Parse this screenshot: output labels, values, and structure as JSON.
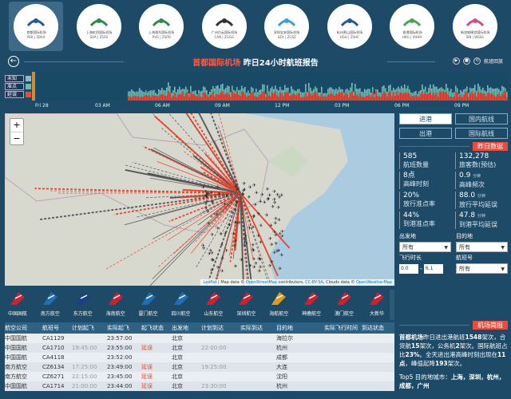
{
  "airports": [
    {
      "name": "首都国际机场",
      "code": "PEK | ZBAA",
      "color": "#1a5aa6"
    },
    {
      "name": "上海虹桥国际机场",
      "code": "SHA | ZSSS",
      "color": "#2a8a4a"
    },
    {
      "name": "上海浦东国际机场",
      "code": "PVG | ZSPD",
      "color": "#2a8a4a"
    },
    {
      "name": "广州白云国际机场",
      "code": "CAN | ZGGG",
      "color": "#333"
    },
    {
      "name": "深圳宝安国际机场",
      "code": "SZX | ZGSZ",
      "color": "#3aa0d8"
    },
    {
      "name": "杭州萧山国际机场",
      "code": "HGH | ZSHC",
      "color": "#1a5aa6"
    },
    {
      "name": "香港国际机场",
      "code": "HKG | VHHH",
      "color": "#4aa84a"
    },
    {
      "name": "新加坡樟宜国际机场",
      "code": "SIN | WSSS",
      "color": "#d94a8a"
    }
  ],
  "airport_logo_text": {
    "canton": "BAIYUNPORT",
    "hia": "HIA"
  },
  "title": {
    "airport": "首都国际机场",
    "rest": "昨日24小时航班报告"
  },
  "controls": {
    "play": "▶",
    "stop": "■",
    "full": "航班回放"
  },
  "legend": [
    {
      "label": "未知",
      "color": "#8fb7d6"
    },
    {
      "label": "准点",
      "color": "#5fc2b0"
    },
    {
      "label": "延误",
      "color": "#e94b3c"
    }
  ],
  "timeline_ticks": [
    "Fri 28",
    "03 AM",
    "06 AM",
    "09 AM",
    "12 PM",
    "03 PM",
    "06 PM",
    "09 PM"
  ],
  "map": {
    "zoom_in": "+",
    "zoom_out": "−",
    "attribution": [
      {
        "text": "Leaflet",
        "link": true
      },
      {
        "text": " | Map data © ",
        "link": false
      },
      {
        "text": "OpenStreetMap",
        "link": true
      },
      {
        "text": " contributors, ",
        "link": false
      },
      {
        "text": "CC-BY-SA",
        "link": true
      },
      {
        "text": ", Clouds data © ",
        "link": false
      },
      {
        "text": "OpenWeatherMap",
        "link": true
      }
    ]
  },
  "tabs": {
    "arrive": "进港",
    "domestic": "国内航线",
    "depart": "出港",
    "intl": "国际航线"
  },
  "yesterday": {
    "title": "昨日数据",
    "stats": [
      {
        "v": "585",
        "unit": "",
        "l": "航班数量"
      },
      {
        "v": "132,278",
        "unit": "",
        "l": "旅客数(预估)"
      },
      {
        "v": "8点",
        "unit": "",
        "l": "高峰时刻"
      },
      {
        "v": "0.9",
        "unit": "分钟",
        "l": "高峰频次"
      },
      {
        "v": "20%",
        "unit": "",
        "l": "放行准点率"
      },
      {
        "v": "88.0",
        "unit": "分钟",
        "l": "放行平均延误"
      },
      {
        "v": "44%",
        "unit": "",
        "l": "到港准点率"
      },
      {
        "v": "47.8",
        "unit": "分钟",
        "l": "到港平均延误"
      }
    ]
  },
  "filters": {
    "from_label": "出发地",
    "to_label": "目的地",
    "from_val": "所有",
    "to_val": "所有",
    "dur_label": "飞行时长",
    "fno_label": "航班号",
    "dur_min": "0.0",
    "dur_max": "6.1",
    "fno_val": "所有"
  },
  "airlines": [
    {
      "name": "中国国航",
      "color": "#d0202c"
    },
    {
      "name": "南方航空",
      "color": "#1d6fb8"
    },
    {
      "name": "东方航空",
      "color": "#1a3f8a"
    },
    {
      "name": "海南航空",
      "color": "#d0202c"
    },
    {
      "name": "厦门航空",
      "color": "#1d6fb8"
    },
    {
      "name": "四川航空",
      "color": "#1d6fb8"
    },
    {
      "name": "山东航空",
      "color": "#d0202c"
    },
    {
      "name": "深圳航空",
      "color": "#d0202c"
    },
    {
      "name": "海航航空",
      "color": "#e09a1a"
    },
    {
      "name": "神鹿航空",
      "color": "#d0202c"
    },
    {
      "name": "澳门航空",
      "color": "#d0202c"
    },
    {
      "name": "大新华",
      "color": "#d0202c"
    }
  ],
  "table": {
    "headers": [
      "航空公司",
      "航班号",
      "计划起飞",
      "实际起飞",
      "起飞状态",
      "出发地",
      "计划到达",
      "实际到达",
      "目的地",
      "实际飞行时间",
      "到达状态"
    ],
    "rows": [
      [
        "中国国航",
        "CA1129",
        "",
        "23:57:00",
        "",
        "北京",
        "",
        "",
        "海拉尔",
        "",
        ""
      ],
      [
        "中国国航",
        "CA1710",
        "19:45:00",
        "23:55:00",
        "延误",
        "北京",
        "22:00:00",
        "",
        "杭州",
        "",
        ""
      ],
      [
        "中国国航",
        "CA4118",
        "",
        "23:52:00",
        "",
        "北京",
        "",
        "",
        "成都",
        "",
        ""
      ],
      [
        "南方航空",
        "CZ6134",
        "17:25:00",
        "23:49:00",
        "延误",
        "北京",
        "19:25:00",
        "",
        "大连",
        "",
        ""
      ],
      [
        "南方航空",
        "CZ6271",
        "22:15:00",
        "23:45:00",
        "延误",
        "北京",
        "",
        "",
        "沈阳",
        "",
        ""
      ],
      [
        "中国国航",
        "CA1714",
        "21:00:00",
        "23:44:00",
        "延误",
        "北京",
        "23:30:00",
        "",
        "杭州",
        "",
        ""
      ]
    ]
  },
  "brief": {
    "title": "机场简报",
    "p1": [
      {
        "t": "首都机场",
        "b": true
      },
      {
        "t": "昨日进出港航班",
        "b": false
      },
      {
        "t": "1548",
        "b": true
      },
      {
        "t": "架次，合货航",
        "b": false
      },
      {
        "t": "15",
        "b": true
      },
      {
        "t": "架次，公务机",
        "b": false
      },
      {
        "t": "2",
        "b": true
      },
      {
        "t": "架次。国际航班占比",
        "b": false
      },
      {
        "t": "23%",
        "b": true
      },
      {
        "t": "。全天进出港高峰时刻出现在",
        "b": false
      },
      {
        "t": "11点",
        "b": true
      },
      {
        "t": "，峰值起降",
        "b": false
      },
      {
        "t": "193",
        "b": true
      },
      {
        "t": "架次。",
        "b": false
      }
    ],
    "p2": [
      {
        "t": "Top5 目的地城市：",
        "b": false
      },
      {
        "t": "上海，深圳，杭州，成都，广州",
        "b": true
      }
    ]
  }
}
